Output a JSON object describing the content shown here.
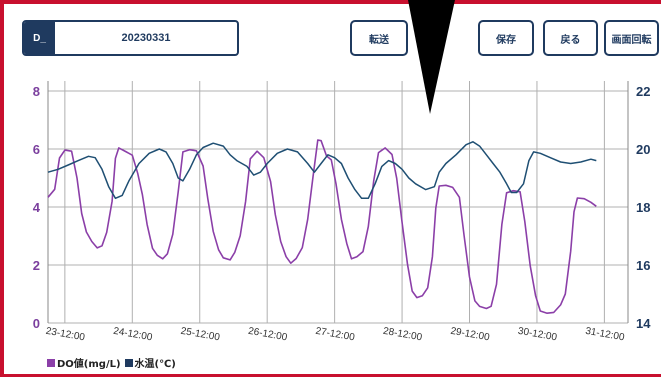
{
  "header": {
    "file_prefix": "D_",
    "file_name": "20230331",
    "buttons": {
      "transfer": "転送",
      "save": "保存",
      "back": "戻る",
      "rotate": "画面回転"
    }
  },
  "chart_data": {
    "type": "line",
    "x_ticks": [
      "23-12:00",
      "24-12:00",
      "25-12:00",
      "26-12:00",
      "27-12:00",
      "28-12:00",
      "29-12:00",
      "30-12:00",
      "31-12:00"
    ],
    "xlim": [
      -0.25,
      8.35
    ],
    "y_left": {
      "lim": [
        0,
        8
      ],
      "ticks": [
        0,
        2,
        4,
        6,
        8
      ],
      "color": "#7b3f9e"
    },
    "y_right": {
      "lim": [
        14,
        22
      ],
      "ticks": [
        14,
        16,
        18,
        20,
        22
      ],
      "color": "#1f3a5f"
    },
    "grid": true,
    "legend_position": "bottom-left",
    "series": [
      {
        "name": "DO値(mg/L)",
        "axis": "left",
        "color": "#8b3fa8",
        "points": [
          [
            -0.25,
            4.3
          ],
          [
            -0.15,
            4.6
          ],
          [
            -0.08,
            5.7
          ],
          [
            0.0,
            6.0
          ],
          [
            0.1,
            5.9
          ],
          [
            0.18,
            5.0
          ],
          [
            0.25,
            3.8
          ],
          [
            0.32,
            3.1
          ],
          [
            0.4,
            2.8
          ],
          [
            0.48,
            2.6
          ],
          [
            0.55,
            2.7
          ],
          [
            0.62,
            3.1
          ],
          [
            0.7,
            4.2
          ],
          [
            0.75,
            5.7
          ],
          [
            0.8,
            6.0
          ],
          [
            0.9,
            5.9
          ],
          [
            1.0,
            5.8
          ],
          [
            1.08,
            5.2
          ],
          [
            1.15,
            4.4
          ],
          [
            1.22,
            3.4
          ],
          [
            1.3,
            2.6
          ],
          [
            1.37,
            2.3
          ],
          [
            1.45,
            2.2
          ],
          [
            1.52,
            2.4
          ],
          [
            1.6,
            3.1
          ],
          [
            1.68,
            4.5
          ],
          [
            1.75,
            5.9
          ],
          [
            1.85,
            6.0
          ],
          [
            1.95,
            5.9
          ],
          [
            2.05,
            5.4
          ],
          [
            2.12,
            4.3
          ],
          [
            2.2,
            3.2
          ],
          [
            2.28,
            2.5
          ],
          [
            2.35,
            2.25
          ],
          [
            2.45,
            2.2
          ],
          [
            2.52,
            2.4
          ],
          [
            2.6,
            3.0
          ],
          [
            2.68,
            4.2
          ],
          [
            2.75,
            5.7
          ],
          [
            2.85,
            5.9
          ],
          [
            2.95,
            5.7
          ],
          [
            3.05,
            4.9
          ],
          [
            3.12,
            3.7
          ],
          [
            3.2,
            2.8
          ],
          [
            3.28,
            2.3
          ],
          [
            3.35,
            2.1
          ],
          [
            3.43,
            2.2
          ],
          [
            3.52,
            2.6
          ],
          [
            3.6,
            3.6
          ],
          [
            3.68,
            5.0
          ],
          [
            3.75,
            6.3
          ],
          [
            3.8,
            6.3
          ],
          [
            3.88,
            5.8
          ],
          [
            3.95,
            5.6
          ],
          [
            4.02,
            4.8
          ],
          [
            4.1,
            3.6
          ],
          [
            4.18,
            2.7
          ],
          [
            4.25,
            2.2
          ],
          [
            4.33,
            2.3
          ],
          [
            4.42,
            2.5
          ],
          [
            4.5,
            3.3
          ],
          [
            4.58,
            4.9
          ],
          [
            4.65,
            5.9
          ],
          [
            4.75,
            6.0
          ],
          [
            4.85,
            5.8
          ],
          [
            4.92,
            5.0
          ],
          [
            5.0,
            3.5
          ],
          [
            5.08,
            2.0
          ],
          [
            5.15,
            1.1
          ],
          [
            5.22,
            0.9
          ],
          [
            5.3,
            0.9
          ],
          [
            5.38,
            1.2
          ],
          [
            5.45,
            2.3
          ],
          [
            5.5,
            4.0
          ],
          [
            5.55,
            4.7
          ],
          [
            5.65,
            4.75
          ],
          [
            5.75,
            4.7
          ],
          [
            5.85,
            4.3
          ],
          [
            5.92,
            3.0
          ],
          [
            6.0,
            1.6
          ],
          [
            6.08,
            0.8
          ],
          [
            6.15,
            0.55
          ],
          [
            6.25,
            0.5
          ],
          [
            6.32,
            0.6
          ],
          [
            6.4,
            1.3
          ],
          [
            6.48,
            3.4
          ],
          [
            6.55,
            4.5
          ],
          [
            6.65,
            4.6
          ],
          [
            6.75,
            4.5
          ],
          [
            6.82,
            3.5
          ],
          [
            6.9,
            2.0
          ],
          [
            6.98,
            0.9
          ],
          [
            7.05,
            0.4
          ],
          [
            7.15,
            0.35
          ],
          [
            7.25,
            0.4
          ],
          [
            7.35,
            0.6
          ],
          [
            7.42,
            1.0
          ],
          [
            7.5,
            2.5
          ],
          [
            7.55,
            3.8
          ],
          [
            7.6,
            4.3
          ],
          [
            7.7,
            4.3
          ],
          [
            7.8,
            4.2
          ],
          [
            7.88,
            4.0
          ]
        ]
      },
      {
        "name": "水温(℃)",
        "axis": "right",
        "color": "#1f4f73",
        "points": [
          [
            -0.25,
            19.2
          ],
          [
            -0.1,
            19.3
          ],
          [
            0.05,
            19.45
          ],
          [
            0.2,
            19.6
          ],
          [
            0.35,
            19.75
          ],
          [
            0.45,
            19.7
          ],
          [
            0.55,
            19.3
          ],
          [
            0.65,
            18.7
          ],
          [
            0.75,
            18.3
          ],
          [
            0.85,
            18.4
          ],
          [
            0.95,
            18.9
          ],
          [
            1.1,
            19.5
          ],
          [
            1.25,
            19.85
          ],
          [
            1.4,
            20.0
          ],
          [
            1.5,
            19.9
          ],
          [
            1.6,
            19.5
          ],
          [
            1.68,
            19.0
          ],
          [
            1.75,
            18.9
          ],
          [
            1.85,
            19.3
          ],
          [
            1.95,
            19.8
          ],
          [
            2.05,
            20.05
          ],
          [
            2.2,
            20.2
          ],
          [
            2.35,
            20.1
          ],
          [
            2.45,
            19.8
          ],
          [
            2.55,
            19.6
          ],
          [
            2.7,
            19.4
          ],
          [
            2.8,
            19.1
          ],
          [
            2.9,
            19.2
          ],
          [
            3.0,
            19.5
          ],
          [
            3.15,
            19.85
          ],
          [
            3.3,
            20.0
          ],
          [
            3.45,
            19.9
          ],
          [
            3.6,
            19.5
          ],
          [
            3.7,
            19.2
          ],
          [
            3.8,
            19.5
          ],
          [
            3.9,
            19.8
          ],
          [
            4.0,
            19.7
          ],
          [
            4.1,
            19.5
          ],
          [
            4.2,
            19.0
          ],
          [
            4.3,
            18.6
          ],
          [
            4.4,
            18.3
          ],
          [
            4.5,
            18.3
          ],
          [
            4.6,
            18.8
          ],
          [
            4.7,
            19.4
          ],
          [
            4.8,
            19.6
          ],
          [
            4.9,
            19.5
          ],
          [
            5.0,
            19.3
          ],
          [
            5.1,
            19.0
          ],
          [
            5.2,
            18.8
          ],
          [
            5.35,
            18.6
          ],
          [
            5.48,
            18.7
          ],
          [
            5.55,
            19.2
          ],
          [
            5.65,
            19.5
          ],
          [
            5.8,
            19.8
          ],
          [
            5.95,
            20.15
          ],
          [
            6.05,
            20.25
          ],
          [
            6.15,
            20.1
          ],
          [
            6.25,
            19.8
          ],
          [
            6.35,
            19.5
          ],
          [
            6.45,
            19.2
          ],
          [
            6.55,
            18.8
          ],
          [
            6.62,
            18.5
          ],
          [
            6.7,
            18.5
          ],
          [
            6.8,
            18.8
          ],
          [
            6.88,
            19.6
          ],
          [
            6.95,
            19.9
          ],
          [
            7.05,
            19.85
          ],
          [
            7.2,
            19.7
          ],
          [
            7.35,
            19.55
          ],
          [
            7.5,
            19.5
          ],
          [
            7.65,
            19.55
          ],
          [
            7.8,
            19.65
          ],
          [
            7.88,
            19.6
          ]
        ]
      }
    ]
  },
  "legend": {
    "do_label": "DO値(mg/L)",
    "wt_label": "水温(℃)"
  }
}
